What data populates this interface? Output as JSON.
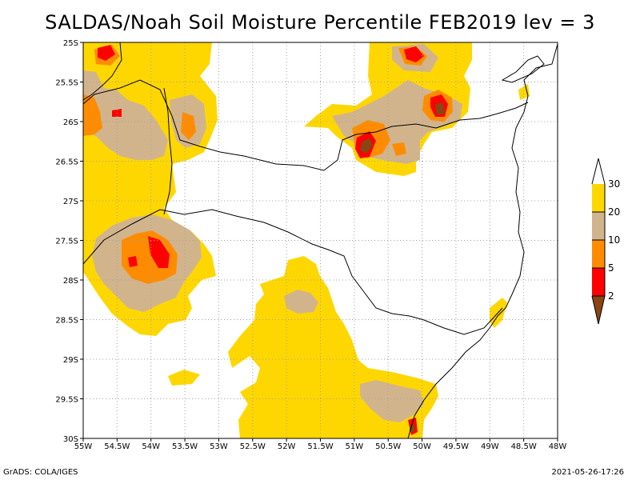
{
  "title": "SALDAS/Noah Soil Moisture Percentile FEB2019 lev = 3",
  "footer": {
    "left": "GrADS: COLA/IGES",
    "right": "2021-05-26-17:26"
  },
  "colors": {
    "lt2": "#8b4513",
    "c2_5": "#ff0000",
    "c5_10": "#ff8c00",
    "c10_20": "#d2b48c",
    "c20_30": "#ffd700",
    "gt30": "#ffffff",
    "grid": "#a0a0a0",
    "border": "#000000"
  },
  "map": {
    "lon_range": [
      -55,
      -48
    ],
    "lat_range": [
      -30,
      -25
    ],
    "x_ticks": [
      "55W",
      "54.5W",
      "54W",
      "53.5W",
      "53W",
      "52.5W",
      "52W",
      "51.5W",
      "51W",
      "50.5W",
      "50W",
      "49.5W",
      "49W",
      "48.5W",
      "48W"
    ],
    "y_ticks": [
      "25S",
      "25.5S",
      "26S",
      "26.5S",
      "27S",
      "27.5S",
      "28S",
      "28.5S",
      "29S",
      "29.5S",
      "30S"
    ]
  },
  "legend": {
    "labels": [
      "2",
      "5",
      "10",
      "20",
      "30"
    ]
  }
}
